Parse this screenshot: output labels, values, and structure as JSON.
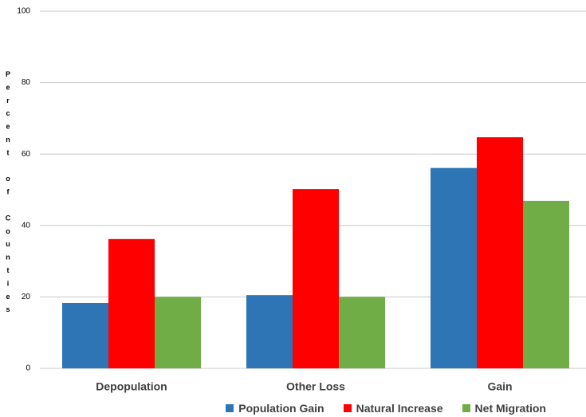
{
  "chart_data": {
    "type": "bar",
    "y_label": "Percent of Counties",
    "categories": [
      "Depopulation",
      "Other Loss",
      "Gain"
    ],
    "series": [
      {
        "name": "Population Gain",
        "color": "#2e75b6",
        "values": [
          18.3,
          20.5,
          56.1
        ]
      },
      {
        "name": "Natural Increase",
        "color": "#ff0000",
        "values": [
          36.2,
          50.2,
          64.7
        ]
      },
      {
        "name": "Net Migration",
        "color": "#70ad47",
        "values": [
          20.0,
          20.0,
          46.9
        ]
      }
    ],
    "ylim": [
      0,
      100
    ],
    "yticks": [
      0,
      20,
      40,
      60,
      80,
      100
    ],
    "grid": true,
    "legend": "bottom"
  }
}
